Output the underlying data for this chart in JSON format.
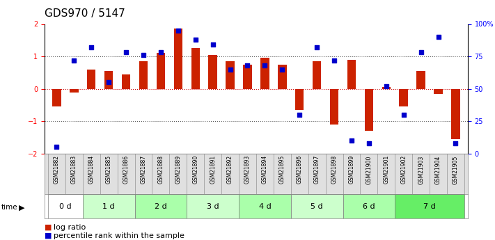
{
  "title": "GDS970 / 5147",
  "samples": [
    "GSM21882",
    "GSM21883",
    "GSM21884",
    "GSM21885",
    "GSM21886",
    "GSM21887",
    "GSM21888",
    "GSM21889",
    "GSM21890",
    "GSM21891",
    "GSM21892",
    "GSM21893",
    "GSM21894",
    "GSM21895",
    "GSM21896",
    "GSM21897",
    "GSM21898",
    "GSM21899",
    "GSM21900",
    "GSM21901",
    "GSM21902",
    "GSM21903",
    "GSM21904",
    "GSM21905"
  ],
  "log_ratio": [
    -0.55,
    -0.12,
    0.6,
    0.55,
    0.45,
    0.85,
    1.1,
    1.85,
    1.25,
    1.05,
    0.85,
    0.75,
    0.95,
    0.75,
    -0.65,
    0.85,
    -1.1,
    0.9,
    -1.3,
    0.05,
    -0.55,
    0.55,
    -0.15,
    -1.55
  ],
  "percentile_rank": [
    5,
    72,
    82,
    55,
    78,
    76,
    78,
    95,
    88,
    84,
    65,
    68,
    68,
    65,
    30,
    82,
    72,
    10,
    8,
    52,
    30,
    78,
    90,
    8
  ],
  "time_groups": [
    {
      "label": "0 d",
      "start": 0,
      "end": 2,
      "color": "#ffffff"
    },
    {
      "label": "1 d",
      "start": 2,
      "end": 5,
      "color": "#ccffcc"
    },
    {
      "label": "2 d",
      "start": 5,
      "end": 8,
      "color": "#aaffaa"
    },
    {
      "label": "3 d",
      "start": 8,
      "end": 11,
      "color": "#ccffcc"
    },
    {
      "label": "4 d",
      "start": 11,
      "end": 14,
      "color": "#aaffaa"
    },
    {
      "label": "5 d",
      "start": 14,
      "end": 17,
      "color": "#ccffcc"
    },
    {
      "label": "6 d",
      "start": 17,
      "end": 20,
      "color": "#aaffaa"
    },
    {
      "label": "7 d",
      "start": 20,
      "end": 24,
      "color": "#66ee66"
    }
  ],
  "bar_color": "#cc2200",
  "dot_color": "#0000cc",
  "ylim": [
    -2,
    2
  ],
  "y2lim": [
    0,
    100
  ],
  "y_ticks": [
    -2,
    -1,
    0,
    1,
    2
  ],
  "y2_ticks": [
    0,
    25,
    50,
    75,
    100
  ],
  "y2_labels": [
    "0",
    "25",
    "50",
    "75",
    "100%"
  ],
  "dotted_line_color": "#555555",
  "zero_line_color": "#cc0000",
  "background_color": "#ffffff",
  "title_fontsize": 11,
  "tick_fontsize": 7,
  "label_fontsize": 5.5,
  "legend_fontsize": 8,
  "time_fontsize": 8,
  "bar_width": 0.5
}
